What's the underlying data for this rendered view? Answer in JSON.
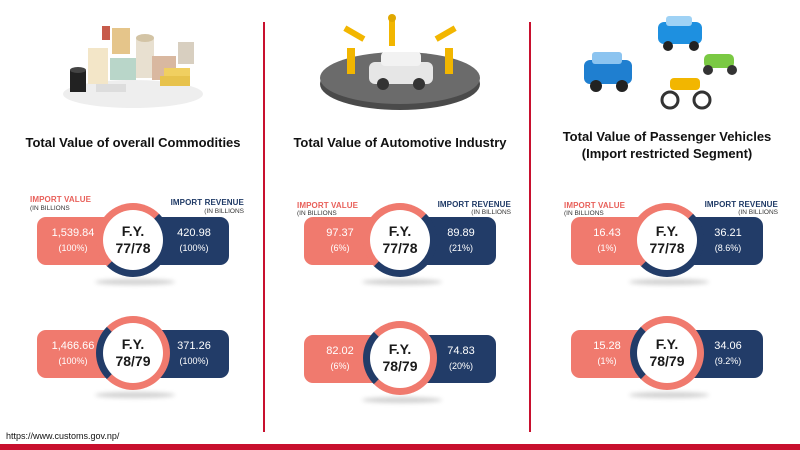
{
  "labels": {
    "import_value": "IMPORT VALUE",
    "import_revenue": "IMPORT REVENUE",
    "unit_left": "(IN BILLIONS",
    "unit_right": "(IN BILLIONS",
    "fy_prefix": "F.Y."
  },
  "columns": [
    {
      "title": "Total Value  of overall Commodities",
      "rows": [
        {
          "fy": "77/78",
          "import_value": "1,539.84",
          "import_pct": "(100%)",
          "revenue": "420.98",
          "revenue_pct": "(100%)"
        },
        {
          "fy": "78/79",
          "import_value": "1,466.66",
          "import_pct": "(100%)",
          "revenue": "371.26",
          "revenue_pct": "(100%)"
        }
      ]
    },
    {
      "title": "Total Value of Automotive Industry",
      "rows": [
        {
          "fy": "77/78",
          "import_value": "97.37",
          "import_pct": "(6%)",
          "revenue": "89.89",
          "revenue_pct": "(21%)"
        },
        {
          "fy": "78/79",
          "import_value": "82.02",
          "import_pct": "(6%)",
          "revenue": "74.83",
          "revenue_pct": "(20%)"
        }
      ]
    },
    {
      "title": "Total Value of Passenger Vehicles (Import restricted Segment)",
      "rows": [
        {
          "fy": "77/78",
          "import_value": "16.43",
          "import_pct": "(1%)",
          "revenue": "36.21",
          "revenue_pct": "(8.6%)"
        },
        {
          "fy": "78/79",
          "import_value": "15.28",
          "import_pct": "(1%)",
          "revenue": "34.06",
          "revenue_pct": "(9.2%)"
        }
      ]
    }
  ],
  "source": "https://www.customs.gov.np/",
  "colors": {
    "import": "#f07a6e",
    "revenue": "#223c68",
    "accent": "#c8102e"
  }
}
